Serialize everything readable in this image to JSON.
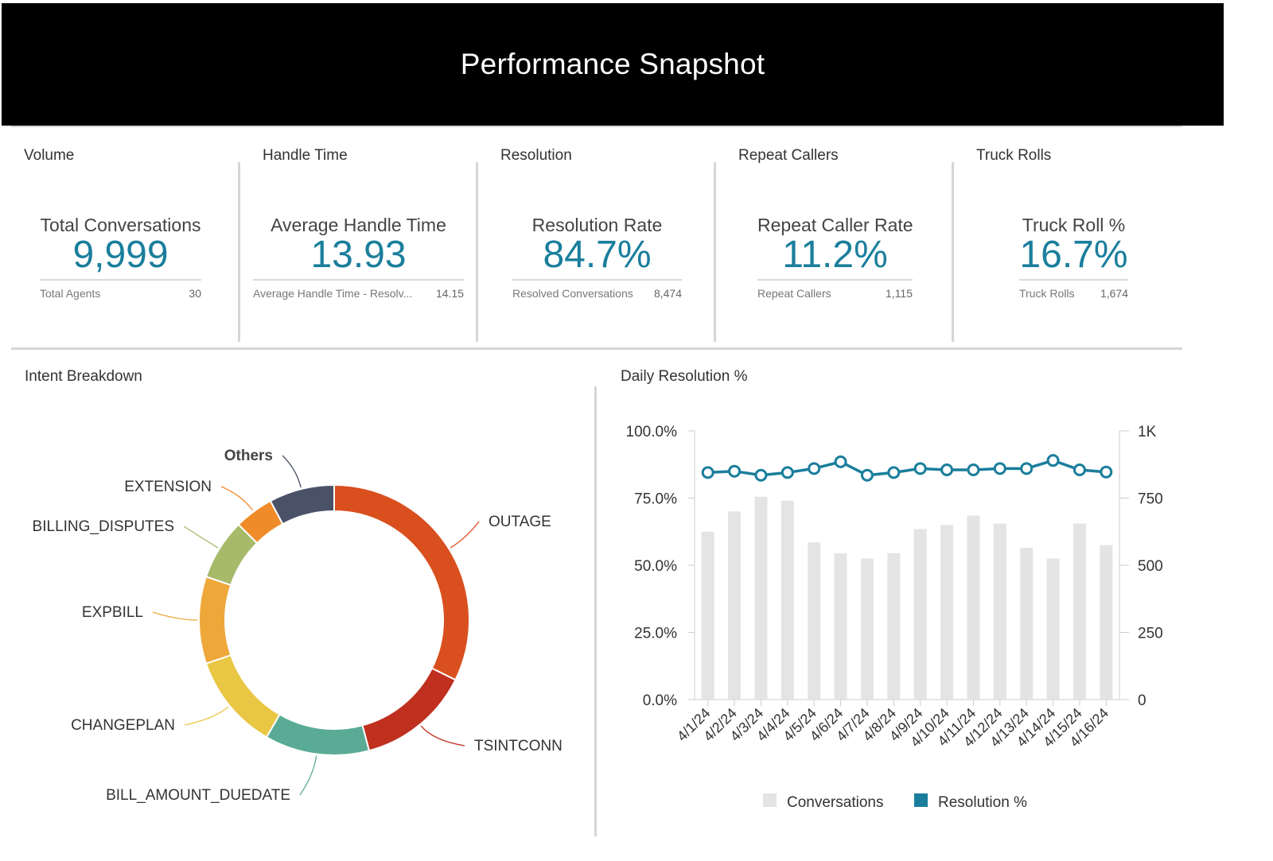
{
  "header": {
    "title": "Performance Snapshot"
  },
  "kpis": [
    {
      "section": "Volume",
      "label": "Total Conversations",
      "value": "9,999",
      "sub_label": "Total Agents",
      "sub_value": "30"
    },
    {
      "section": "Handle Time",
      "label": "Average Handle Time",
      "value": "13.93",
      "sub_label": "Average Handle Time - Resolv...",
      "sub_value": "14.15"
    },
    {
      "section": "Resolution",
      "label": "Resolution Rate",
      "value": "84.7%",
      "sub_label": "Resolved Conversations",
      "sub_value": "8,474"
    },
    {
      "section": "Repeat Callers",
      "label": "Repeat Caller Rate",
      "value": "11.2%",
      "sub_label": "Repeat Callers",
      "sub_value": "1,115"
    },
    {
      "section": "Truck Rolls",
      "label": "Truck Roll %",
      "value": "16.7%",
      "sub_label": "Truck Rolls",
      "sub_value": "1,674"
    }
  ],
  "intent_panel": {
    "title": "Intent Breakdown"
  },
  "daily_panel": {
    "title": "Daily Resolution %"
  },
  "chart_data": [
    {
      "type": "pie",
      "variant": "donut",
      "title": "Intent Breakdown",
      "slices": [
        {
          "label": "OUTAGE",
          "value": 31,
          "color": "#d94f1e"
        },
        {
          "label": "TSINTCONN",
          "value": 13,
          "color": "#c0301f"
        },
        {
          "label": "BILL_AMOUNT_DUEDATE",
          "value": 12,
          "color": "#5aab95"
        },
        {
          "label": "CHANGEPLAN",
          "value": 11,
          "color": "#e9c744"
        },
        {
          "label": "EXPBILL",
          "value": 10,
          "color": "#eea83a"
        },
        {
          "label": "BILLING_DISPUTES",
          "value": 7,
          "color": "#a6ba6a"
        },
        {
          "label": "EXTENSION",
          "value": 4.5,
          "color": "#f08b2a"
        },
        {
          "label": "Others",
          "value": 7.5,
          "color": "#4a5268"
        }
      ]
    },
    {
      "type": "bar",
      "combo": "bar+line",
      "title": "Daily Resolution %",
      "categories": [
        "4/1/24",
        "4/2/24",
        "4/3/24",
        "4/4/24",
        "4/5/24",
        "4/6/24",
        "4/7/24",
        "4/8/24",
        "4/9/24",
        "4/10/24",
        "4/11/24",
        "4/12/24",
        "4/13/24",
        "4/14/24",
        "4/15/24",
        "4/16/24"
      ],
      "series": [
        {
          "name": "Conversations",
          "type": "bar",
          "axis": "right",
          "color": "#e4e4e4",
          "values": [
            625,
            700,
            755,
            740,
            585,
            545,
            525,
            545,
            635,
            650,
            685,
            655,
            565,
            525,
            655,
            575
          ]
        },
        {
          "name": "Resolution %",
          "type": "line",
          "axis": "left",
          "color": "#1a7e9c",
          "values": [
            84.5,
            85.0,
            83.5,
            84.5,
            86.0,
            88.5,
            83.5,
            84.5,
            86.0,
            85.5,
            85.5,
            86.0,
            86.0,
            89.0,
            85.5,
            84.7
          ]
        }
      ],
      "y_left": {
        "ticks": [
          "0.0%",
          "25.0%",
          "50.0%",
          "75.0%",
          "100.0%"
        ],
        "ylim": [
          0,
          100
        ]
      },
      "y_right": {
        "ticks": [
          "0",
          "250",
          "500",
          "750",
          "1K"
        ],
        "ylim": [
          0,
          1000
        ]
      },
      "legend": {
        "position": "bottom"
      }
    }
  ]
}
